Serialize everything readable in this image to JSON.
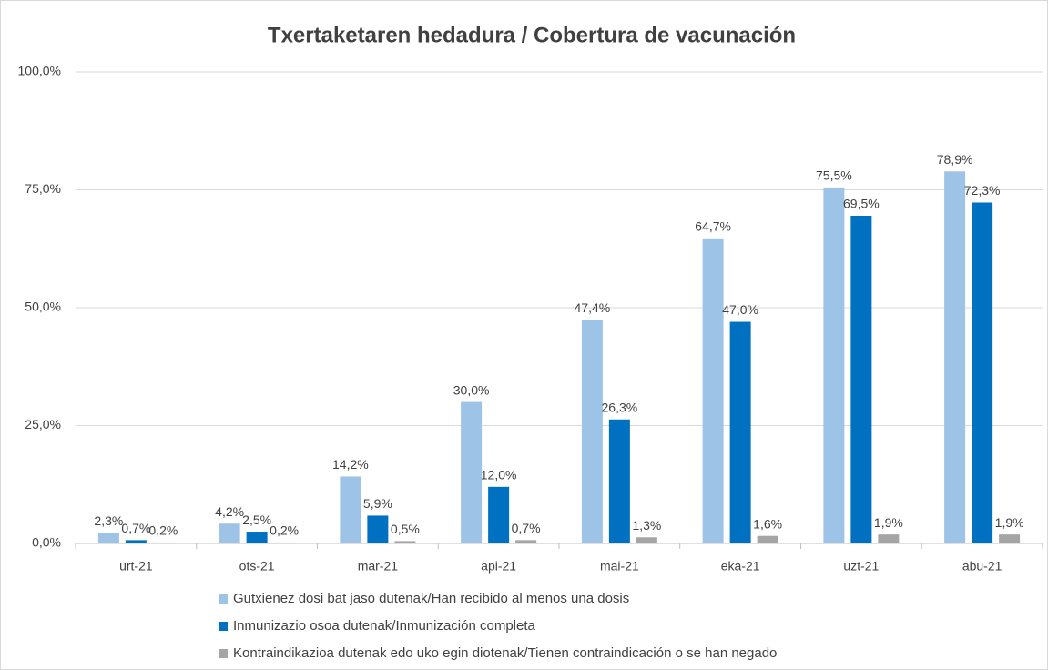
{
  "chart_data": {
    "type": "bar",
    "title": "Txertaketaren hedadura / Cobertura de vacunación",
    "categories": [
      "urt-21",
      "ots-21",
      "mar-21",
      "api-21",
      "mai-21",
      "eka-21",
      "uzt-21",
      "abu-21"
    ],
    "series": [
      {
        "name": "Gutxienez dosi bat jaso dutenak/Han recibido al menos una dosis",
        "color": "#9dc3e6",
        "values": [
          2.3,
          4.2,
          14.2,
          30.0,
          47.4,
          64.7,
          75.5,
          78.9
        ],
        "value_labels": [
          "2,3%",
          "4,2%",
          "14,2%",
          "30,0%",
          "47,4%",
          "64,7%",
          "75,5%",
          "78,9%"
        ]
      },
      {
        "name": "Inmunizazio osoa dutenak/Inmunización completa",
        "color": "#0070c0",
        "values": [
          0.7,
          2.5,
          5.9,
          12.0,
          26.3,
          47.0,
          69.5,
          72.3
        ],
        "value_labels": [
          "0,7%",
          "2,5%",
          "5,9%",
          "12,0%",
          "26,3%",
          "47,0%",
          "69,5%",
          "72,3%"
        ]
      },
      {
        "name": "Kontraindikazioa dutenak edo uko egin diotenak/Tienen contraindicación o se han negado",
        "color": "#a5a5a5",
        "values": [
          0.2,
          0.2,
          0.5,
          0.7,
          1.3,
          1.6,
          1.9,
          1.9
        ],
        "value_labels": [
          "0,2%",
          "0,2%",
          "0,5%",
          "0,7%",
          "1,3%",
          "1,6%",
          "1,9%",
          "1,9%"
        ]
      }
    ],
    "ylim": [
      0,
      100
    ],
    "yticks": [
      {
        "value": 0,
        "label": "0,0%"
      },
      {
        "value": 25,
        "label": "25,0%"
      },
      {
        "value": 50,
        "label": "50,0%"
      },
      {
        "value": 75,
        "label": "75,0%"
      },
      {
        "value": 100,
        "label": "100,0%"
      }
    ],
    "grid": true
  }
}
